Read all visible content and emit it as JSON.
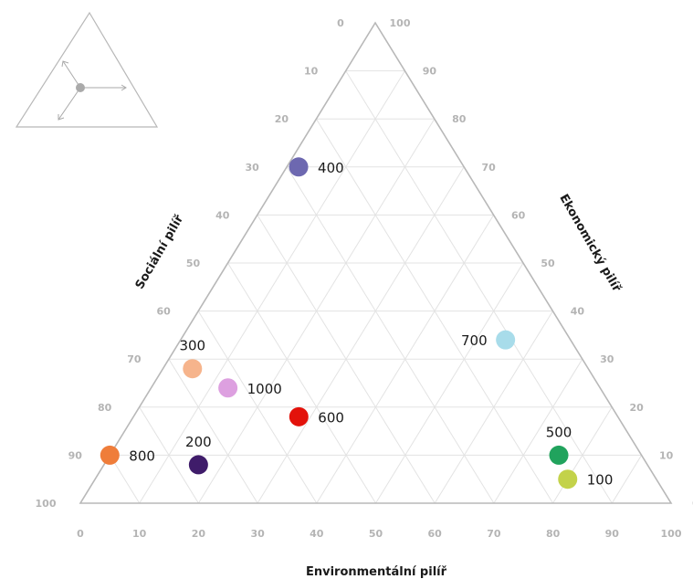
{
  "chart_data": {
    "type": "scatter",
    "subtype": "ternary",
    "axes": {
      "environmental": {
        "label": "Environmentální pilíř",
        "ticks": [
          "0",
          "10",
          "20",
          "30",
          "40",
          "50",
          "60",
          "70",
          "80",
          "90",
          "100"
        ]
      },
      "economic": {
        "label": "Ekonomický pilíř",
        "ticks": [
          "0",
          "10",
          "20",
          "30",
          "40",
          "50",
          "60",
          "70",
          "80",
          "90",
          "100"
        ]
      },
      "social": {
        "label": "Sociální pilíř",
        "ticks": [
          "0",
          "10",
          "20",
          "30",
          "40",
          "50",
          "60",
          "70",
          "80",
          "90",
          "100"
        ]
      }
    },
    "grid": true,
    "points": [
      {
        "label": "100",
        "environmental": 80,
        "economic": 5,
        "social": 15,
        "color": "#c3d24a"
      },
      {
        "label": "200",
        "environmental": 16,
        "economic": 8,
        "social": 76,
        "color": "#3f1c6a"
      },
      {
        "label": "300",
        "environmental": 5,
        "economic": 28,
        "social": 67,
        "color": "#f6b48c"
      },
      {
        "label": "400",
        "environmental": 2,
        "economic": 70,
        "social": 28,
        "color": "#6d68b0"
      },
      {
        "label": "500",
        "environmental": 76,
        "economic": 10,
        "social": 14,
        "color": "#21a35d"
      },
      {
        "label": "600",
        "environmental": 28,
        "economic": 18,
        "social": 54,
        "color": "#e3120b"
      },
      {
        "label": "700",
        "environmental": 55,
        "economic": 34,
        "social": 11,
        "color": "#a8dcea"
      },
      {
        "label": "800",
        "environmental": 0,
        "economic": 10,
        "social": 90,
        "color": "#ef7d3a"
      },
      {
        "label": "1000",
        "environmental": 13,
        "economic": 24,
        "social": 63,
        "color": "#dda0e0"
      }
    ]
  }
}
